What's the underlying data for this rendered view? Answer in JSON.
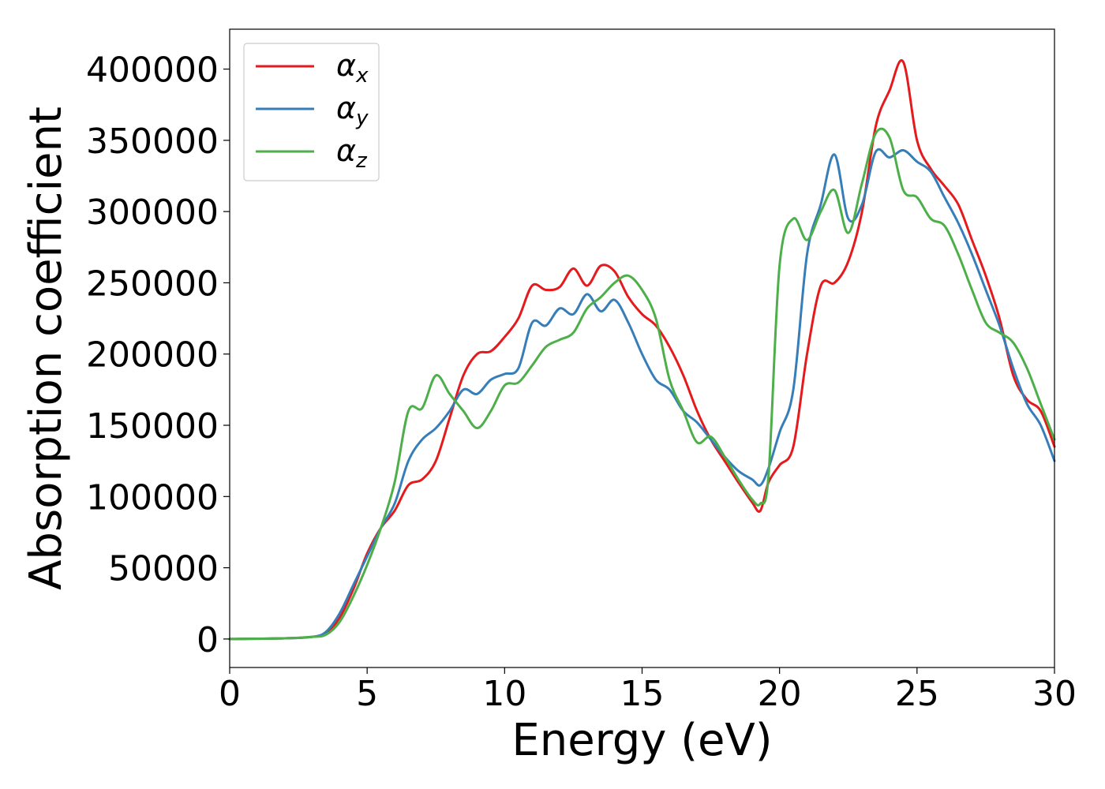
{
  "chart_data": {
    "type": "line",
    "xlabel": "Energy (eV)",
    "ylabel": "Absorption coefficient",
    "xlim": [
      0,
      30
    ],
    "ylim": [
      -20000,
      428000
    ],
    "xticks": [
      0,
      5,
      10,
      15,
      20,
      25,
      30
    ],
    "yticks": [
      0,
      50000,
      100000,
      150000,
      200000,
      250000,
      300000,
      350000,
      400000
    ],
    "xtick_labels": [
      "0",
      "5",
      "10",
      "15",
      "20",
      "25",
      "30"
    ],
    "ytick_labels": [
      "0",
      "50000",
      "100000",
      "150000",
      "200000",
      "250000",
      "300000",
      "350000",
      "400000"
    ],
    "grid": false,
    "legend_position": "top-left",
    "series": [
      {
        "name": "α_x",
        "legend_main": "α",
        "legend_sub": "x",
        "color": "#e41a1c",
        "x": [
          0,
          2,
          3,
          3.5,
          4,
          4.5,
          5,
          5.5,
          6,
          6.5,
          7,
          7.5,
          8,
          8.5,
          9,
          9.5,
          10,
          10.5,
          11,
          11.5,
          12,
          12.5,
          13,
          13.5,
          14,
          14.5,
          15,
          15.5,
          16,
          16.5,
          17,
          17.5,
          18,
          18.5,
          19,
          19.3,
          19.6,
          20,
          20.5,
          21,
          21.5,
          22,
          22.5,
          23,
          23.5,
          24,
          24.5,
          25,
          25.5,
          26,
          26.5,
          27,
          27.5,
          28,
          28.5,
          29,
          29.5,
          30
        ],
        "y": [
          0,
          500,
          1500,
          4000,
          15000,
          35000,
          60000,
          78000,
          90000,
          108000,
          112000,
          125000,
          155000,
          185000,
          200000,
          202000,
          212000,
          225000,
          248000,
          245000,
          247000,
          260000,
          248000,
          262000,
          258000,
          240000,
          228000,
          220000,
          205000,
          185000,
          160000,
          140000,
          125000,
          110000,
          96000,
          90000,
          110000,
          122000,
          135000,
          200000,
          248000,
          250000,
          265000,
          300000,
          360000,
          385000,
          405000,
          350000,
          330000,
          318000,
          305000,
          280000,
          255000,
          225000,
          185000,
          168000,
          160000,
          135000
        ]
      },
      {
        "name": "α_y",
        "legend_main": "α",
        "legend_sub": "y",
        "color": "#377eb8",
        "x": [
          0,
          2,
          3,
          3.5,
          4,
          4.5,
          5,
          5.5,
          6,
          6.5,
          7,
          7.5,
          8,
          8.5,
          9,
          9.5,
          10,
          10.5,
          11,
          11.5,
          12,
          12.5,
          13,
          13.5,
          14,
          14.5,
          15,
          15.5,
          16,
          16.5,
          17,
          17.5,
          18,
          18.5,
          19,
          19.3,
          19.6,
          20,
          20.5,
          21,
          21.5,
          22,
          22.5,
          23,
          23.5,
          24,
          24.5,
          25,
          25.5,
          26,
          26.5,
          27,
          27.5,
          28,
          28.5,
          29,
          29.5,
          30
        ],
        "y": [
          0,
          500,
          1500,
          5000,
          18000,
          38000,
          58000,
          78000,
          95000,
          125000,
          140000,
          148000,
          160000,
          175000,
          172000,
          182000,
          186000,
          190000,
          222000,
          220000,
          232000,
          228000,
          242000,
          230000,
          238000,
          222000,
          200000,
          182000,
          175000,
          160000,
          152000,
          140000,
          128000,
          118000,
          112000,
          108000,
          120000,
          145000,
          175000,
          270000,
          305000,
          340000,
          295000,
          305000,
          342000,
          338000,
          343000,
          335000,
          328000,
          310000,
          292000,
          270000,
          245000,
          220000,
          190000,
          165000,
          150000,
          125000
        ]
      },
      {
        "name": "α_z",
        "legend_main": "α",
        "legend_sub": "z",
        "color": "#4daf4a",
        "x": [
          0,
          2,
          3,
          3.5,
          4,
          4.5,
          5,
          5.5,
          6,
          6.5,
          7,
          7.5,
          8,
          8.5,
          9,
          9.5,
          10,
          10.5,
          11,
          11.5,
          12,
          12.5,
          13,
          13.5,
          14,
          14.5,
          15,
          15.5,
          16,
          16.5,
          17,
          17.5,
          18,
          18.5,
          19,
          19.3,
          19.6,
          20,
          20.5,
          21,
          21.5,
          22,
          22.5,
          23,
          23.5,
          24,
          24.5,
          25,
          25.5,
          26,
          26.5,
          27,
          27.5,
          28,
          28.5,
          29,
          29.5,
          30
        ],
        "y": [
          0,
          500,
          1500,
          3000,
          12000,
          30000,
          52000,
          78000,
          110000,
          160000,
          162000,
          185000,
          172000,
          160000,
          148000,
          160000,
          178000,
          180000,
          192000,
          205000,
          210000,
          215000,
          232000,
          240000,
          250000,
          255000,
          245000,
          225000,
          182000,
          160000,
          138000,
          142000,
          128000,
          112000,
          98000,
          95000,
          115000,
          262000,
          295000,
          280000,
          300000,
          315000,
          285000,
          320000,
          355000,
          352000,
          315000,
          310000,
          295000,
          290000,
          270000,
          245000,
          222000,
          215000,
          208000,
          190000,
          165000,
          140000
        ]
      }
    ]
  }
}
